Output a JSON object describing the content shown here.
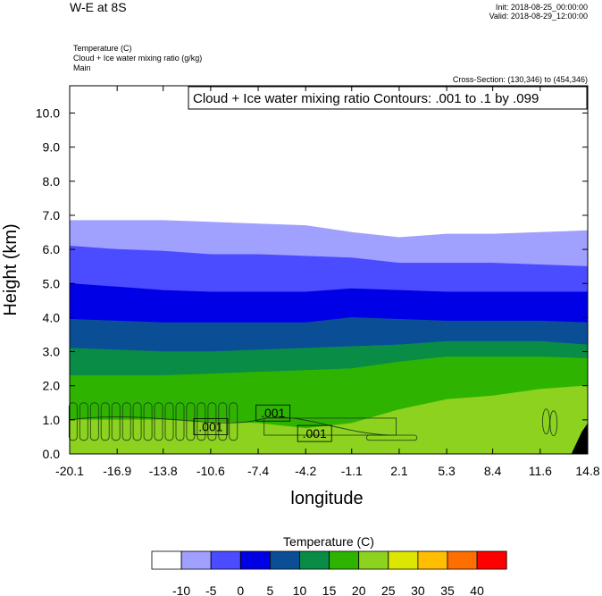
{
  "header": {
    "title": "W-E at 8S",
    "init": "Init: 2018-08-25_00:00:00",
    "valid": "Valid: 2018-08-29_12:00:00",
    "fields": [
      "Temperature   (C)",
      "Cloud + Ice water mixing ratio   (g/kg)",
      "Main"
    ],
    "cross_section": "Cross-Section: (130,346) to (454,346)"
  },
  "chart_data": {
    "type": "area",
    "title": "W-E at 8S",
    "xlabel": "longitude",
    "ylabel": "Height (km)",
    "xlim": [
      -20.1,
      14.8
    ],
    "ylim": [
      0.0,
      10.8
    ],
    "x_ticks": [
      -20.1,
      -16.9,
      -13.8,
      -10.6,
      -7.4,
      -4.2,
      -1.1,
      2.1,
      5.3,
      8.4,
      11.6,
      14.8
    ],
    "y_ticks": [
      0.0,
      1.0,
      2.0,
      3.0,
      4.0,
      5.0,
      6.0,
      7.0,
      8.0,
      9.0,
      10.0
    ],
    "grid": false,
    "contour_annotation": "Cloud + Ice water mixing ratio Contours: .001 to .1 by .099",
    "contour_labels": [
      {
        "text": ".001",
        "x": -10.6,
        "y": 0.8
      },
      {
        "text": ".001",
        "x": -6.4,
        "y": 1.2
      },
      {
        "text": ".001",
        "x": -3.6,
        "y": 0.6
      }
    ],
    "temperature_bands": {
      "x": [
        -20.1,
        -16.9,
        -13.8,
        -10.6,
        -7.4,
        -4.2,
        -1.1,
        2.1,
        5.3,
        8.4,
        11.6,
        14.8
      ],
      "bands": [
        {
          "range": "-10 to -5",
          "color": "#a0a0ff",
          "lower": [
            6.1,
            6.0,
            5.95,
            5.85,
            5.85,
            5.8,
            5.75,
            5.6,
            5.6,
            5.6,
            5.55,
            5.5
          ],
          "upper": [
            6.85,
            6.85,
            6.85,
            6.8,
            6.75,
            6.7,
            6.5,
            6.35,
            6.45,
            6.45,
            6.5,
            6.55
          ]
        },
        {
          "range": "-5 to 0",
          "color": "#4b4bff",
          "lower": [
            5.0,
            4.9,
            4.8,
            4.75,
            4.75,
            4.75,
            4.85,
            4.8,
            4.75,
            4.75,
            4.75,
            4.75
          ],
          "upper": [
            6.1,
            6.0,
            5.95,
            5.85,
            5.85,
            5.8,
            5.75,
            5.6,
            5.6,
            5.6,
            5.55,
            5.5
          ]
        },
        {
          "range": "0 to 5",
          "color": "#0000e6",
          "lower": [
            3.95,
            3.9,
            3.85,
            3.85,
            3.85,
            3.85,
            4.0,
            3.95,
            3.9,
            3.9,
            3.9,
            3.85
          ],
          "upper": [
            5.0,
            4.9,
            4.8,
            4.75,
            4.75,
            4.75,
            4.85,
            4.8,
            4.75,
            4.75,
            4.75,
            4.75
          ]
        },
        {
          "range": "5 to 10",
          "color": "#0a4f96",
          "lower": [
            3.1,
            3.05,
            3.0,
            3.0,
            3.05,
            3.1,
            3.15,
            3.2,
            3.3,
            3.3,
            3.3,
            3.2
          ],
          "upper": [
            3.95,
            3.9,
            3.85,
            3.85,
            3.85,
            3.85,
            4.0,
            3.95,
            3.9,
            3.9,
            3.9,
            3.85
          ]
        },
        {
          "range": "10 to 15",
          "color": "#098c46",
          "lower": [
            2.3,
            2.3,
            2.3,
            2.35,
            2.4,
            2.45,
            2.5,
            2.7,
            2.85,
            2.85,
            2.85,
            2.8
          ],
          "upper": [
            3.1,
            3.05,
            3.0,
            3.0,
            3.05,
            3.1,
            3.15,
            3.2,
            3.3,
            3.3,
            3.3,
            3.2
          ]
        },
        {
          "range": "15 to 20",
          "color": "#2eb400",
          "lower": [
            1.0,
            1.0,
            1.0,
            0.95,
            0.9,
            0.75,
            0.9,
            1.3,
            1.6,
            1.7,
            1.9,
            2.0
          ],
          "upper": [
            2.3,
            2.3,
            2.3,
            2.35,
            2.4,
            2.45,
            2.5,
            2.7,
            2.85,
            2.85,
            2.85,
            2.8
          ]
        },
        {
          "range": "20 to 25",
          "color": "#8cd21e",
          "lower": [
            0.0,
            0.0,
            0.0,
            0.0,
            0.0,
            0.0,
            0.0,
            0.0,
            0.0,
            0.0,
            0.0,
            0.0
          ],
          "upper": [
            1.0,
            1.0,
            1.0,
            0.95,
            0.9,
            0.75,
            0.9,
            1.3,
            1.6,
            1.7,
            1.9,
            2.0
          ]
        }
      ]
    },
    "colorbar": {
      "title": "Temperature  (C)",
      "levels": [
        -10,
        -5,
        0,
        5,
        10,
        15,
        20,
        25,
        30,
        35,
        40
      ],
      "colors": [
        "#ffffff",
        "#a0a0ff",
        "#4b4bff",
        "#0000e6",
        "#0a4f96",
        "#098c46",
        "#2eb400",
        "#8cd21e",
        "#dce600",
        "#ffbe00",
        "#ff6e00",
        "#ff0000"
      ]
    }
  }
}
